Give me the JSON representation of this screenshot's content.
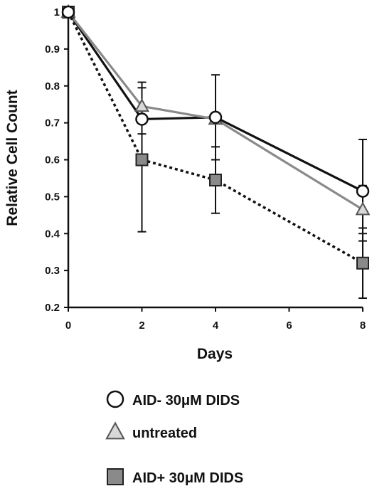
{
  "chart_data": {
    "type": "line",
    "title": "",
    "xlabel": "Days",
    "ylabel": "Relative Cell Count",
    "x": [
      0,
      2,
      4,
      8
    ],
    "xticks": [
      "0",
      "2",
      "4",
      "6",
      "8"
    ],
    "xlim": [
      0,
      8
    ],
    "yticks": [
      "0.2",
      "0.3",
      "0.4",
      "0.5",
      "0.6",
      "0.7",
      "0.8",
      "0.9",
      "1"
    ],
    "ylim": [
      0.2,
      1.0
    ],
    "grid": false,
    "legend_position": "below",
    "series": [
      {
        "name": "AID- 30μM DIDS",
        "marker": "circle",
        "line_style": "solid",
        "line_color": "#111111",
        "values": [
          1.0,
          0.71,
          0.715,
          0.515
        ],
        "error": [
          null,
          null,
          [
            0.6,
            0.83
          ],
          [
            0.38,
            0.655
          ]
        ]
      },
      {
        "name": "untreated",
        "marker": "triangle",
        "line_style": "solid",
        "line_color": "#8a8a8a",
        "values": [
          1.0,
          0.745,
          0.71,
          0.465
        ],
        "error": [
          null,
          [
            0.67,
            0.81
          ],
          null,
          [
            0.4,
            0.53
          ]
        ]
      },
      {
        "name": "AID+ 30μM DIDS",
        "marker": "square",
        "line_style": "dotted",
        "line_color": "#111111",
        "values": [
          1.0,
          0.6,
          0.545,
          0.32
        ],
        "error": [
          null,
          [
            0.405,
            0.795
          ],
          [
            0.455,
            0.635
          ],
          [
            0.225,
            0.415
          ]
        ]
      }
    ]
  }
}
